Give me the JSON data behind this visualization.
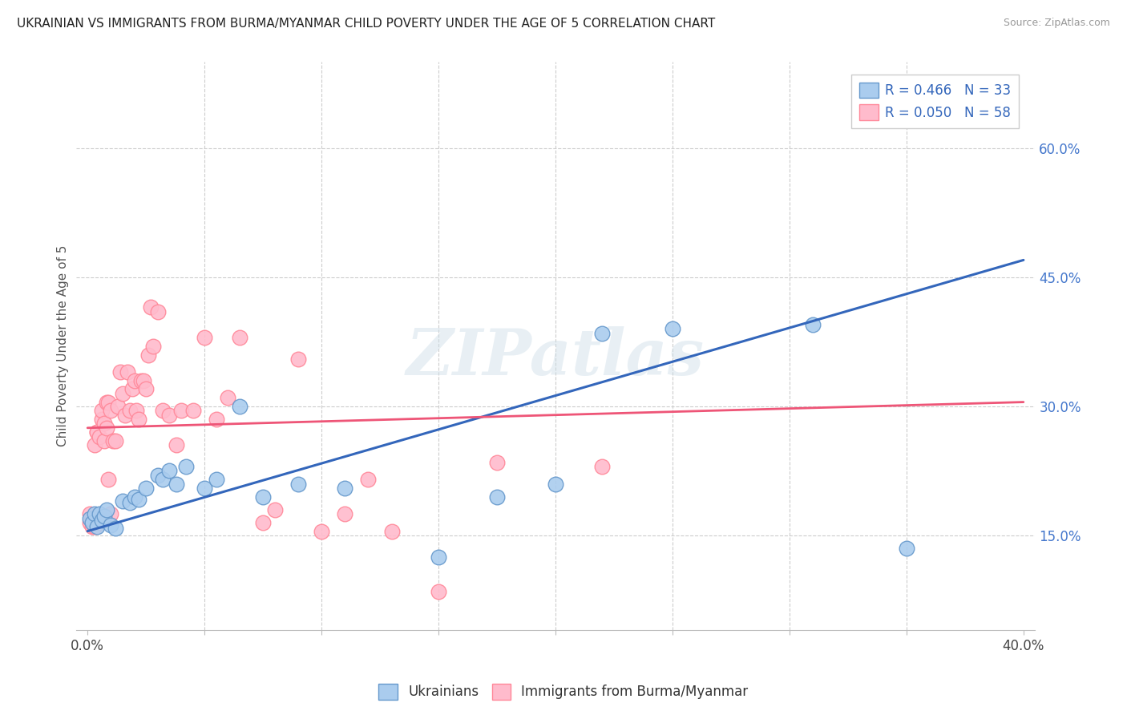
{
  "title": "UKRAINIAN VS IMMIGRANTS FROM BURMA/MYANMAR CHILD POVERTY UNDER THE AGE OF 5 CORRELATION CHART",
  "source": "Source: ZipAtlas.com",
  "ylabel": "Child Poverty Under the Age of 5",
  "yticks": [
    "15.0%",
    "30.0%",
    "45.0%",
    "60.0%"
  ],
  "ytick_vals": [
    0.15,
    0.3,
    0.45,
    0.6
  ],
  "xlim": [
    -0.005,
    0.405
  ],
  "ylim": [
    0.04,
    0.7
  ],
  "watermark": "ZIPatlas",
  "legend_r_blue": "R = 0.466",
  "legend_n_blue": "N = 33",
  "legend_r_pink": "R = 0.050",
  "legend_n_pink": "N = 58",
  "blue_fill": "#AACCEE",
  "blue_edge": "#6699CC",
  "pink_fill": "#FFBBCC",
  "pink_edge": "#FF8899",
  "blue_line_color": "#3366BB",
  "pink_line_color": "#EE5577",
  "blue_line": {
    "x0": 0.0,
    "y0": 0.155,
    "x1": 0.4,
    "y1": 0.47
  },
  "pink_line": {
    "x0": 0.0,
    "y0": 0.275,
    "x1": 0.4,
    "y1": 0.305
  },
  "blue_scatter_x": [
    0.001,
    0.002,
    0.003,
    0.004,
    0.005,
    0.006,
    0.007,
    0.008,
    0.01,
    0.012,
    0.015,
    0.018,
    0.02,
    0.022,
    0.025,
    0.03,
    0.032,
    0.035,
    0.038,
    0.042,
    0.05,
    0.055,
    0.065,
    0.075,
    0.09,
    0.11,
    0.15,
    0.175,
    0.2,
    0.22,
    0.25,
    0.31,
    0.35
  ],
  "blue_scatter_y": [
    0.17,
    0.165,
    0.175,
    0.16,
    0.175,
    0.168,
    0.172,
    0.18,
    0.162,
    0.158,
    0.19,
    0.188,
    0.195,
    0.192,
    0.205,
    0.22,
    0.215,
    0.225,
    0.21,
    0.23,
    0.205,
    0.215,
    0.3,
    0.195,
    0.21,
    0.205,
    0.125,
    0.195,
    0.21,
    0.385,
    0.39,
    0.395,
    0.135
  ],
  "pink_scatter_x": [
    0.001,
    0.001,
    0.002,
    0.002,
    0.003,
    0.003,
    0.004,
    0.004,
    0.005,
    0.005,
    0.006,
    0.006,
    0.007,
    0.007,
    0.008,
    0.008,
    0.009,
    0.009,
    0.01,
    0.01,
    0.011,
    0.012,
    0.013,
    0.014,
    0.015,
    0.016,
    0.017,
    0.018,
    0.019,
    0.02,
    0.021,
    0.022,
    0.023,
    0.024,
    0.025,
    0.026,
    0.027,
    0.028,
    0.03,
    0.032,
    0.035,
    0.038,
    0.04,
    0.045,
    0.05,
    0.055,
    0.06,
    0.065,
    0.075,
    0.08,
    0.09,
    0.1,
    0.11,
    0.12,
    0.13,
    0.15,
    0.175,
    0.22
  ],
  "pink_scatter_y": [
    0.175,
    0.165,
    0.17,
    0.16,
    0.255,
    0.16,
    0.27,
    0.27,
    0.165,
    0.265,
    0.285,
    0.295,
    0.28,
    0.26,
    0.275,
    0.305,
    0.215,
    0.305,
    0.175,
    0.295,
    0.26,
    0.26,
    0.3,
    0.34,
    0.315,
    0.29,
    0.34,
    0.295,
    0.32,
    0.33,
    0.295,
    0.285,
    0.33,
    0.33,
    0.32,
    0.36,
    0.415,
    0.37,
    0.41,
    0.295,
    0.29,
    0.255,
    0.295,
    0.295,
    0.38,
    0.285,
    0.31,
    0.38,
    0.165,
    0.18,
    0.355,
    0.155,
    0.175,
    0.215,
    0.155,
    0.085,
    0.235,
    0.23
  ]
}
